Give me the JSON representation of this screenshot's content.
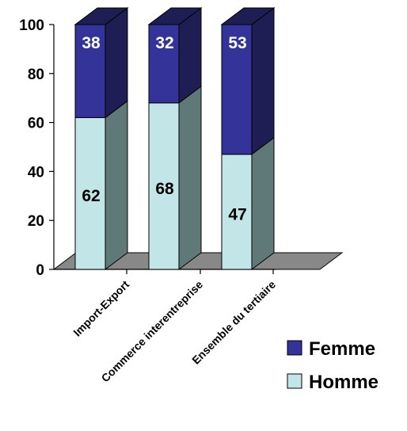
{
  "chart_data": {
    "type": "bar",
    "stacked": true,
    "three_d": true,
    "categories": [
      "Import-Export",
      "Commerce interentreprise",
      "Ensemble du tertiaire"
    ],
    "series": [
      {
        "name": "Homme",
        "values": [
          62,
          68,
          47
        ],
        "color": "#c2e6e8",
        "side_color": "#5f7878"
      },
      {
        "name": "Femme",
        "values": [
          38,
          32,
          53
        ],
        "color": "#333399",
        "side_color": "#1e1e55"
      }
    ],
    "yticks": [
      0,
      20,
      40,
      60,
      80,
      100
    ],
    "ylim": [
      0,
      100
    ],
    "floor_color": "#888888",
    "legend_position": "bottom-right",
    "legend_order": [
      "Femme",
      "Homme"
    ],
    "title": "",
    "xlabel": "",
    "ylabel": ""
  }
}
